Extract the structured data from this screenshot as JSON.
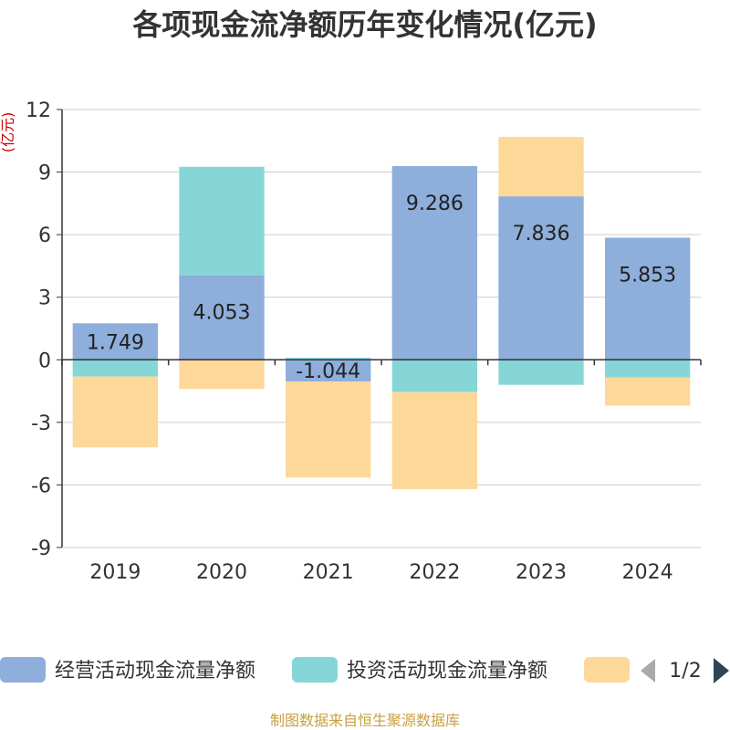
{
  "chart_data": {
    "type": "bar",
    "stacked": true,
    "title": "各项现金流净额历年变化情况(亿元)",
    "unit_label": "(亿元)",
    "categories": [
      "2019",
      "2020",
      "2021",
      "2022",
      "2023",
      "2024"
    ],
    "ylim": [
      -9,
      12
    ],
    "yticks": [
      12,
      9,
      6,
      3,
      0,
      -3,
      -6,
      -9
    ],
    "series": [
      {
        "name": "经营活动现金流量净额",
        "color": "#8eaedb",
        "values": [
          1.749,
          4.053,
          -1.044,
          9.286,
          7.836,
          5.853
        ],
        "show_labels": true
      },
      {
        "name": "投资活动现金流量净额",
        "color": "#86d6d8",
        "values": [
          -0.8,
          5.2,
          0.1,
          -1.55,
          -1.2,
          -0.85
        ],
        "show_labels": false
      },
      {
        "name": "",
        "color": "#fdd899",
        "values": [
          -3.4,
          -1.4,
          -4.6,
          -4.65,
          2.85,
          -1.35
        ],
        "show_labels": false
      }
    ],
    "legend": {
      "position": "bottom",
      "page": "1/2"
    },
    "source": "制图数据来自恒生聚源数据库"
  }
}
